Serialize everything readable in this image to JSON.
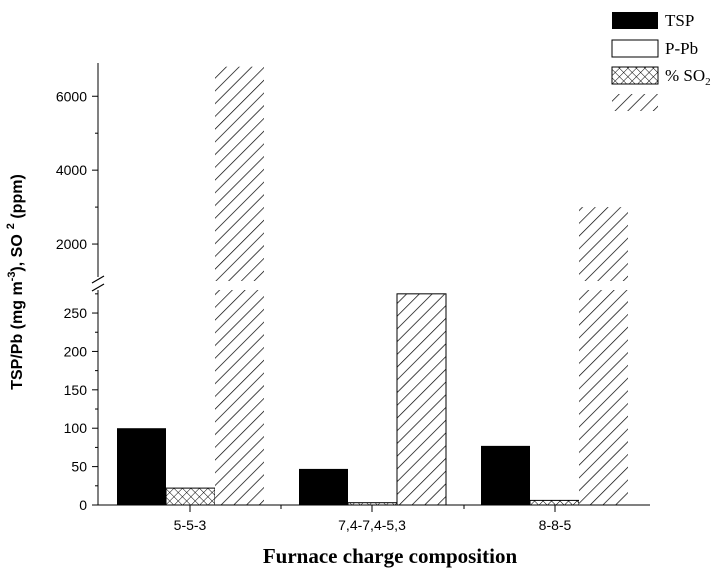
{
  "chart_data": {
    "type": "bar",
    "xlabel": "Furnace charge composition",
    "ylabel_main": "TSP/Pb (mg m",
    "ylabel_exp": "-3",
    "ylabel_mid": "), SO",
    "ylabel_sub": "2",
    "ylabel_end": " (ppm)",
    "categories": [
      "5-5-3",
      "7,4-7,4-5,3",
      "8-8-5"
    ],
    "series": [
      {
        "name": "TSP",
        "pattern": "solid",
        "values": [
          100,
          47,
          77
        ]
      },
      {
        "name": "P-Pb",
        "pattern": "empty",
        "values": [
          0,
          0,
          0
        ]
      },
      {
        "name": "% SO",
        "name_sub": "2",
        "pattern": "crosshatch",
        "values": [
          22,
          3,
          6
        ]
      },
      {
        "name": "",
        "pattern": "diagonal",
        "values": [
          6800,
          275,
          3000
        ]
      }
    ],
    "axis_break": true,
    "lower_segment": {
      "ylim": [
        0,
        280
      ],
      "ticks": [
        0,
        50,
        100,
        150,
        200,
        250
      ]
    },
    "upper_segment": {
      "ylim": [
        1000,
        6900
      ],
      "ticks": [
        2000,
        4000,
        6000
      ]
    },
    "legend_position": "top-right",
    "colors": {
      "bar_fill": "#000000",
      "background": "#ffffff"
    }
  }
}
